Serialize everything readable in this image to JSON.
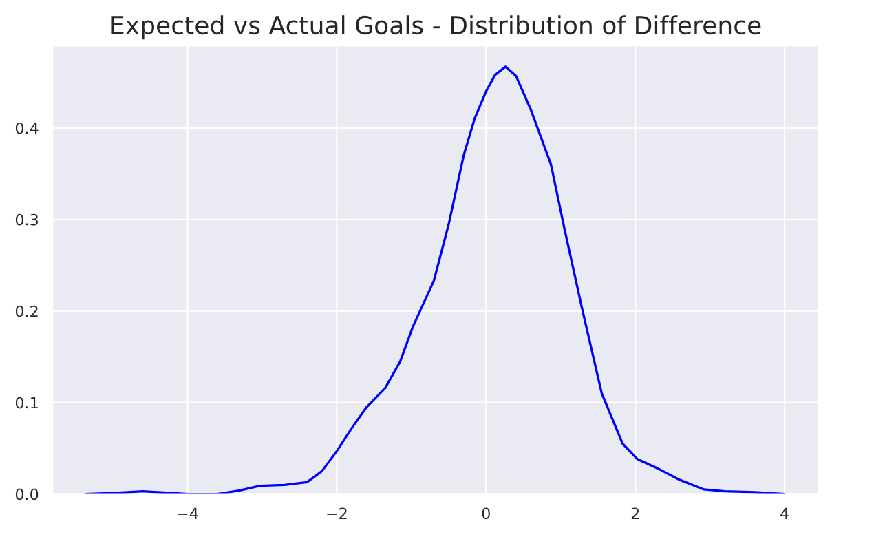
{
  "chart_data": {
    "type": "line",
    "title": "Expected vs Actual Goals - Distribution of Difference",
    "x": [
      -5.37,
      -5.0,
      -4.6,
      -4.2,
      -4.0,
      -3.6,
      -3.3,
      -3.03,
      -2.7,
      -2.4,
      -2.2,
      -2.0,
      -1.8,
      -1.6,
      -1.35,
      -1.15,
      -0.98,
      -0.7,
      -0.5,
      -0.3,
      -0.15,
      0.0,
      0.12,
      0.26,
      0.4,
      0.6,
      0.87,
      1.05,
      1.28,
      1.55,
      1.83,
      2.03,
      2.3,
      2.58,
      2.92,
      3.2,
      3.6,
      4.0
    ],
    "series": [
      {
        "color": "#0000ff",
        "values": [
          0.0,
          0.001,
          0.003,
          0.001,
          0.0,
          0.0,
          0.004,
          0.009,
          0.01,
          0.013,
          0.025,
          0.047,
          0.072,
          0.095,
          0.116,
          0.145,
          0.183,
          0.233,
          0.295,
          0.37,
          0.411,
          0.44,
          0.458,
          0.467,
          0.457,
          0.42,
          0.36,
          0.29,
          0.205,
          0.11,
          0.055,
          0.038,
          0.028,
          0.016,
          0.005,
          0.003,
          0.002,
          0.0
        ]
      }
    ],
    "xlim": [
      -5.81,
      4.46
    ],
    "ylim": [
      0,
      0.49
    ],
    "xticks": [
      {
        "value": -4,
        "label": "−4"
      },
      {
        "value": -2,
        "label": "−2"
      },
      0,
      2,
      4
    ],
    "yticks": [
      {
        "value": 0,
        "label": "0.0"
      },
      0.1,
      0.2,
      0.3,
      0.4
    ],
    "grid": true,
    "legend": false
  }
}
